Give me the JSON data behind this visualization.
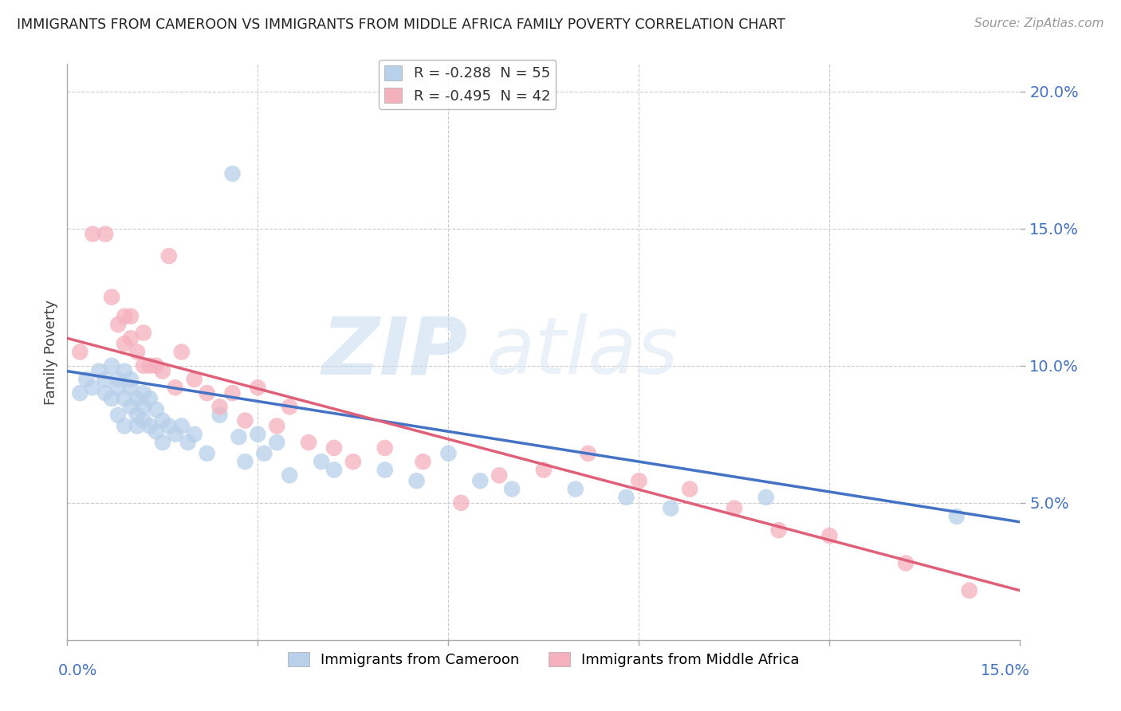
{
  "title": "IMMIGRANTS FROM CAMEROON VS IMMIGRANTS FROM MIDDLE AFRICA FAMILY POVERTY CORRELATION CHART",
  "source": "Source: ZipAtlas.com",
  "ylabel": "Family Poverty",
  "xlim": [
    0,
    0.15
  ],
  "ylim": [
    0,
    0.21
  ],
  "ytick_values": [
    0.05,
    0.1,
    0.15,
    0.2
  ],
  "legend_entries": [
    {
      "label": "R = -0.288  N = 55",
      "color": "#b8d0ea"
    },
    {
      "label": "R = -0.495  N = 42",
      "color": "#f5b0be"
    }
  ],
  "cameroon_color": "#b8d0ea",
  "midafrica_color": "#f5b0be",
  "cameroon_line_color": "#4472c4",
  "midafrica_line_color": "#e0607a",
  "cam_line_start_y": 0.098,
  "cam_line_end_y": 0.043,
  "mid_line_start_y": 0.11,
  "mid_line_end_y": 0.018,
  "cameroon_x": [
    0.002,
    0.003,
    0.004,
    0.005,
    0.006,
    0.006,
    0.007,
    0.007,
    0.008,
    0.008,
    0.008,
    0.009,
    0.009,
    0.009,
    0.01,
    0.01,
    0.01,
    0.011,
    0.011,
    0.011,
    0.012,
    0.012,
    0.012,
    0.013,
    0.013,
    0.014,
    0.014,
    0.015,
    0.015,
    0.016,
    0.017,
    0.018,
    0.019,
    0.02,
    0.022,
    0.024,
    0.026,
    0.027,
    0.028,
    0.03,
    0.031,
    0.033,
    0.035,
    0.04,
    0.042,
    0.05,
    0.055,
    0.06,
    0.065,
    0.07,
    0.08,
    0.088,
    0.095,
    0.11,
    0.14
  ],
  "cameroon_y": [
    0.09,
    0.095,
    0.092,
    0.098,
    0.095,
    0.09,
    0.1,
    0.088,
    0.095,
    0.092,
    0.082,
    0.098,
    0.088,
    0.078,
    0.092,
    0.085,
    0.095,
    0.088,
    0.082,
    0.078,
    0.09,
    0.085,
    0.08,
    0.088,
    0.078,
    0.084,
    0.076,
    0.08,
    0.072,
    0.078,
    0.075,
    0.078,
    0.072,
    0.075,
    0.068,
    0.082,
    0.17,
    0.074,
    0.065,
    0.075,
    0.068,
    0.072,
    0.06,
    0.065,
    0.062,
    0.062,
    0.058,
    0.068,
    0.058,
    0.055,
    0.055,
    0.052,
    0.048,
    0.052,
    0.045
  ],
  "midafrica_x": [
    0.002,
    0.004,
    0.006,
    0.007,
    0.008,
    0.009,
    0.009,
    0.01,
    0.01,
    0.011,
    0.012,
    0.012,
    0.013,
    0.014,
    0.015,
    0.016,
    0.017,
    0.018,
    0.02,
    0.022,
    0.024,
    0.026,
    0.028,
    0.03,
    0.033,
    0.035,
    0.038,
    0.042,
    0.045,
    0.05,
    0.056,
    0.062,
    0.068,
    0.075,
    0.082,
    0.09,
    0.098,
    0.105,
    0.112,
    0.12,
    0.132,
    0.142
  ],
  "midafrica_y": [
    0.105,
    0.148,
    0.148,
    0.125,
    0.115,
    0.118,
    0.108,
    0.118,
    0.11,
    0.105,
    0.112,
    0.1,
    0.1,
    0.1,
    0.098,
    0.14,
    0.092,
    0.105,
    0.095,
    0.09,
    0.085,
    0.09,
    0.08,
    0.092,
    0.078,
    0.085,
    0.072,
    0.07,
    0.065,
    0.07,
    0.065,
    0.05,
    0.06,
    0.062,
    0.068,
    0.058,
    0.055,
    0.048,
    0.04,
    0.038,
    0.028,
    0.018
  ]
}
